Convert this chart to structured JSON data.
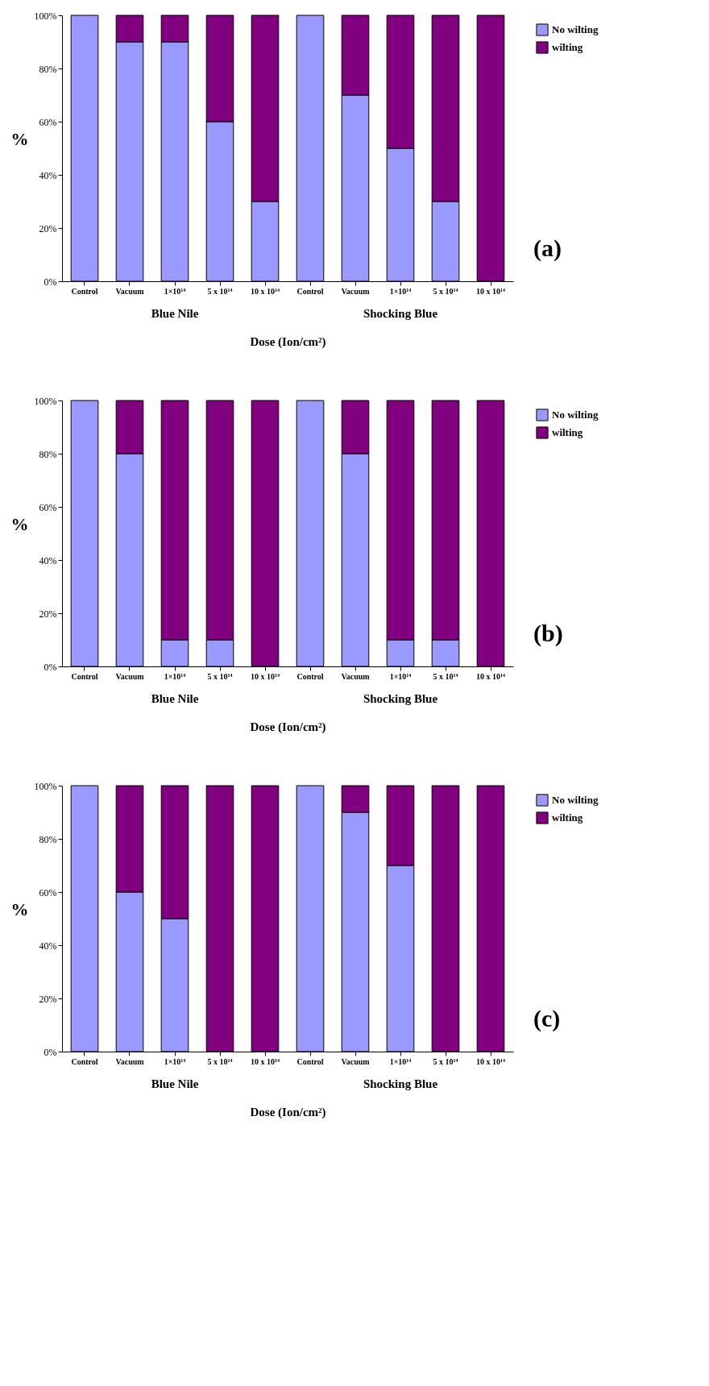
{
  "chart_data": [
    {
      "type": "bar",
      "stacked": true,
      "categories": [
        "Control",
        "Vacuum",
        "1×10¹⁴",
        "5 x 10¹⁴",
        "10 x 10¹⁴",
        "Control",
        "Vacuum",
        "1×10¹⁴",
        "5 x 10¹⁴",
        "10 x 10¹⁴"
      ],
      "xlabel": "Dose (Ion/cm²)",
      "ylabel": "%",
      "ylim": [
        0,
        100
      ],
      "yticks": [
        {
          "value": 0,
          "label": "0%"
        },
        {
          "value": 20,
          "label": "20%"
        },
        {
          "value": 40,
          "label": "40%"
        },
        {
          "value": 60,
          "label": "60%"
        },
        {
          "value": 80,
          "label": "80%"
        },
        {
          "value": 100,
          "label": "100%"
        }
      ],
      "legend": "right",
      "annotations": [
        "Blue Nile",
        "Shocking Blue",
        "(a)"
      ],
      "series": [
        {
          "name": "No wilting",
          "color": "#9999ff",
          "values": [
            100,
            90,
            90,
            60,
            30,
            100,
            70,
            50,
            30,
            0
          ]
        },
        {
          "name": "wilting",
          "color": "#800080",
          "values": [
            0,
            10,
            10,
            40,
            70,
            0,
            30,
            50,
            70,
            100
          ]
        }
      ]
    },
    {
      "type": "bar",
      "stacked": true,
      "categories": [
        "Control",
        "Vacuum",
        "1×10¹⁴",
        "5 x 10¹⁴",
        "10 x 10¹⁴",
        "Control",
        "Vacuum",
        "1×10¹⁴",
        "5 x 10¹⁴",
        "10 x 10¹⁴"
      ],
      "xlabel": "Dose (Ion/cm²)",
      "ylabel": "%",
      "ylim": [
        0,
        100
      ],
      "yticks": [
        {
          "value": 0,
          "label": "0%"
        },
        {
          "value": 20,
          "label": "20%"
        },
        {
          "value": 40,
          "label": "40%"
        },
        {
          "value": 60,
          "label": "60%"
        },
        {
          "value": 80,
          "label": "80%"
        },
        {
          "value": 100,
          "label": "100%"
        }
      ],
      "legend": "right",
      "annotations": [
        "Blue Nile",
        "Shocking Blue",
        "(b)"
      ],
      "series": [
        {
          "name": "No wilting",
          "color": "#9999ff",
          "values": [
            100,
            80,
            10,
            10,
            0,
            100,
            80,
            10,
            10,
            0
          ]
        },
        {
          "name": "wilting",
          "color": "#800080",
          "values": [
            0,
            20,
            90,
            90,
            100,
            0,
            20,
            90,
            90,
            100
          ]
        }
      ]
    },
    {
      "type": "bar",
      "stacked": true,
      "categories": [
        "Control",
        "Vacuum",
        "1×10¹⁴",
        "5 x 10¹⁴",
        "10 x 10¹⁴",
        "Control",
        "Vacuum",
        "1×10¹⁴",
        "5 x 10¹⁴",
        "10 x 10¹⁴"
      ],
      "xlabel": "Dose (Ion/cm²)",
      "ylabel": "%",
      "ylim": [
        0,
        100
      ],
      "yticks": [
        {
          "value": 0,
          "label": "0%"
        },
        {
          "value": 20,
          "label": "20%"
        },
        {
          "value": 40,
          "label": "40%"
        },
        {
          "value": 60,
          "label": "60%"
        },
        {
          "value": 80,
          "label": "80%"
        },
        {
          "value": 100,
          "label": "100%"
        }
      ],
      "legend": "right",
      "annotations": [
        "Blue Nile",
        "Shocking Blue",
        "(c)"
      ],
      "series": [
        {
          "name": "No wilting",
          "color": "#9999ff",
          "values": [
            100,
            60,
            50,
            0,
            0,
            100,
            90,
            70,
            0,
            0
          ]
        },
        {
          "name": "wilting",
          "color": "#800080",
          "values": [
            0,
            40,
            50,
            100,
            100,
            0,
            10,
            30,
            100,
            100
          ]
        }
      ]
    }
  ]
}
